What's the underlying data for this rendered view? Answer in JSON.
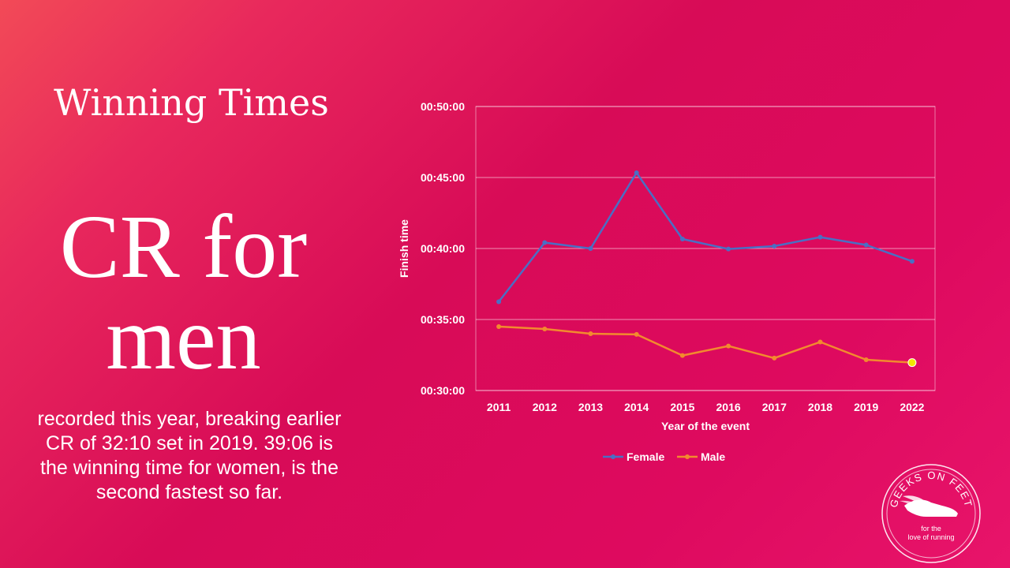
{
  "slide": {
    "title": "Winning Times",
    "headline_line1": "CR for",
    "headline_line2": "men",
    "body": "recorded this year, breaking earlier CR of 32:10 set in 2019. 39:06 is the winning time for women, is the second fastest so far."
  },
  "logo": {
    "arc_text": "GEEKS ON FEET",
    "tagline_line1": "for the",
    "tagline_line2": "love of running",
    "icon": "winged-shoe-icon"
  },
  "colors": {
    "background": "#d80b57",
    "female": "#4a6fc4",
    "male": "#f28a2e",
    "highlight_point": "#f2e600",
    "text": "#ffffff"
  },
  "chart_data": {
    "type": "line",
    "xlabel": "Year of the event",
    "ylabel": "Finish time",
    "categories": [
      "2011",
      "2012",
      "2013",
      "2014",
      "2015",
      "2016",
      "2017",
      "2018",
      "2019",
      "2022"
    ],
    "y_ticks": [
      "00:30:00",
      "00:35:00",
      "00:40:00",
      "00:45:00",
      "00:50:00"
    ],
    "ylim": [
      "00:30:00",
      "00:50:00"
    ],
    "grid": "horizontal",
    "legend_position": "bottom",
    "series": [
      {
        "name": "Female",
        "color": "#4a6fc4",
        "values": [
          "00:36:15",
          "00:40:25",
          "00:40:00",
          "00:45:20",
          "00:40:40",
          "00:39:58",
          "00:40:10",
          "00:40:48",
          "00:40:15",
          "00:39:06"
        ]
      },
      {
        "name": "Male",
        "color": "#f28a2e",
        "values": [
          "00:34:30",
          "00:34:20",
          "00:34:00",
          "00:33:57",
          "00:32:28",
          "00:33:08",
          "00:32:17",
          "00:33:25",
          "00:32:10",
          "00:31:58"
        ]
      }
    ],
    "highlight": {
      "series": "Male",
      "category": "2022"
    }
  }
}
